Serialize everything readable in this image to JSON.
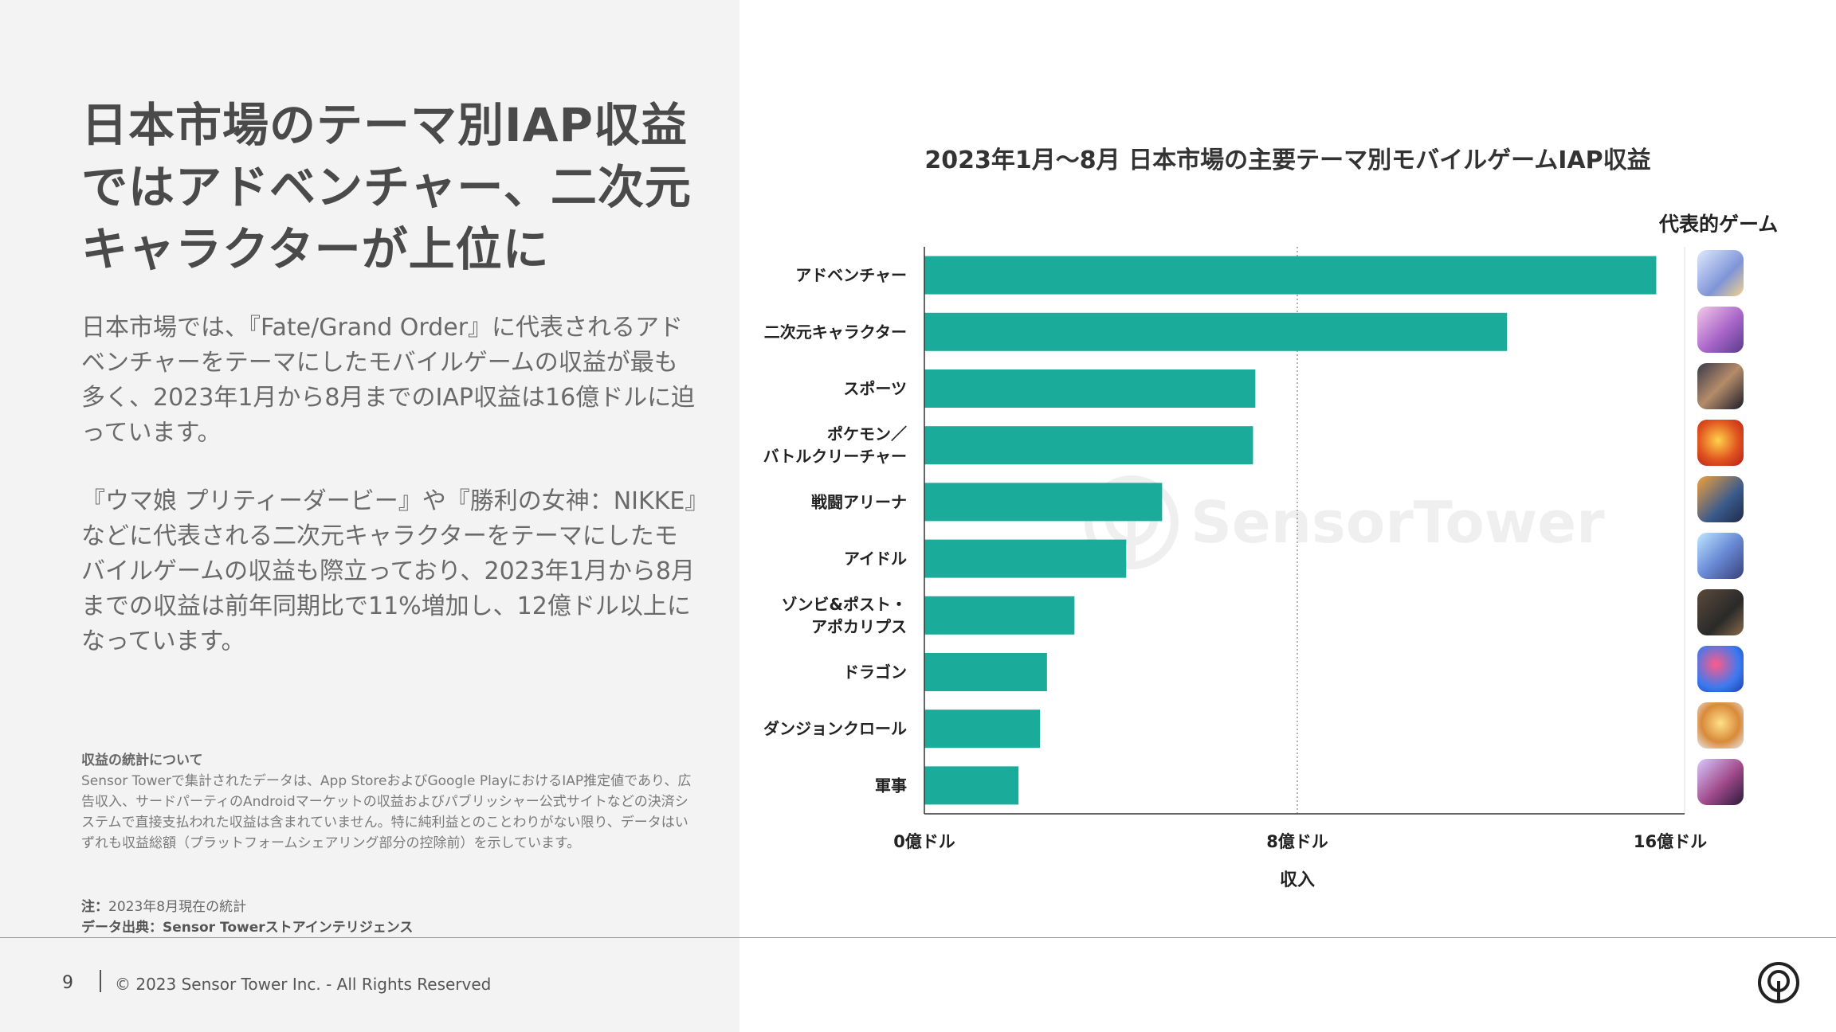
{
  "headline": "日本市場のテーマ別IAP収益ではアドベンチャー、二次元キャラクターが上位に",
  "body": {
    "paragraph1": "日本市場では、『Fate/Grand Order』に代表されるアドベンチャーをテーマにしたモバイルゲームの収益が最も多く、2023年1月から8月までのIAP収益は16億ドルに迫っています。",
    "paragraph2": "『ウマ娘 プリティーダービー』や『勝利の女神：NIKKE』などに代表される二次元キャラクターをテーマにしたモバイルゲームの収益も際立っており、2023年1月から8月までの収益は前年同期比で11%増加し、12億ドル以上になっています。"
  },
  "stats_note": {
    "heading": "収益の統計について",
    "text": "Sensor Towerで集計されたデータは、App StoreおよびGoogle PlayにおけるIAP推定値であり、広告収入、サードパーティのAndroidマーケットの収益およびパブリッシャー公式サイトなどの決済システムで直接支払われた収益は含まれていません。特に純利益とのことわりがない限り、データはいずれも収益総額（プラットフォームシェアリング部分の控除前）を示しています。"
  },
  "footnote": {
    "note_label": "注：",
    "note_text": "2023年8月現在の統計",
    "source_label": "データ出典：",
    "source_text": "Sensor Towerストアインテリジェンス"
  },
  "footer": {
    "page_number": "9",
    "copyright": "© 2023 Sensor Tower Inc. - All Rights Reserved"
  },
  "watermark_text": "SensorTower",
  "representative_games_label": "代表的ゲーム",
  "colors": {
    "bar": "#1aab9b",
    "left_panel": "#f3f3f3",
    "headline": "#4a4a4a"
  },
  "chart_data": {
    "type": "bar",
    "orientation": "horizontal",
    "title": "2023年1月～8月 日本市場の主要テーマ別モバイルゲームIAP収益",
    "xlabel": "収入",
    "ylabel": "",
    "categories": [
      [
        "アドベンチャー"
      ],
      [
        "二次元キャラクター"
      ],
      [
        "スポーツ"
      ],
      [
        "ポケモン／",
        "バトルクリーチャー"
      ],
      [
        "戦闘アリーナ"
      ],
      [
        "アイドル"
      ],
      [
        "ゾンビ&ポスト・",
        "アポカリプス"
      ],
      [
        "ドラゴン"
      ],
      [
        "ダンジョンクロール"
      ],
      [
        "軍事"
      ]
    ],
    "values": [
      15.7,
      12.5,
      7.1,
      7.05,
      5.1,
      4.33,
      3.22,
      2.63,
      2.48,
      2.02
    ],
    "xlim": [
      0,
      16
    ],
    "xticks": [
      0,
      8,
      16
    ],
    "xtick_labels": [
      "0億ドル",
      "8億ドル",
      "16億ドル"
    ],
    "grid": "vertical line at 8",
    "legend": "none"
  }
}
